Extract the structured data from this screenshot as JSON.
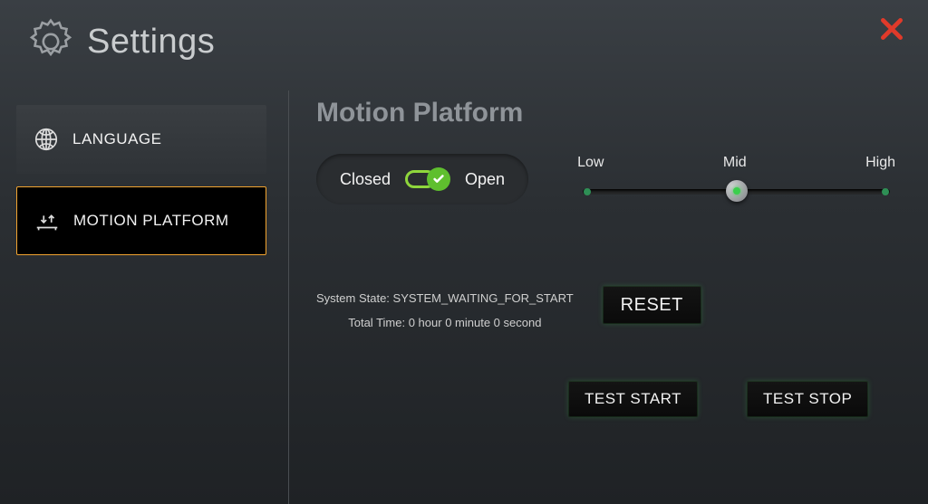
{
  "header": {
    "title": "Settings"
  },
  "colors": {
    "close_icon": "#e03a2a",
    "active_border": "#f2a430",
    "toggle_green": "#8fd63c",
    "toggle_knob": "#5fbf2e",
    "slider_tick": "#2e8f55",
    "slider_handle_dot": "#3bcf4d"
  },
  "sidebar": {
    "items": [
      {
        "id": "language",
        "label": "LANGUAGE",
        "icon": "globe-icon",
        "active": false
      },
      {
        "id": "motion-platform",
        "label": "MOTION PLATFORM",
        "icon": "platform-icon",
        "active": true
      }
    ]
  },
  "main": {
    "title": "Motion Platform",
    "toggle": {
      "left_label": "Closed",
      "right_label": "Open",
      "state": "closed"
    },
    "slider": {
      "labels": [
        "Low",
        "Mid",
        "High"
      ],
      "value_index": 1,
      "tick_positions_pct": [
        3,
        50,
        97
      ],
      "handle_position_pct": 50
    },
    "status": {
      "system_state_label": "System State:",
      "system_state_value": "SYSTEM_WAITING_FOR_START",
      "total_time_label": "Total Time:",
      "total_time_value": "0 hour 0 minute 0 second"
    },
    "buttons": {
      "reset": "RESET",
      "test_start": "TEST START",
      "test_stop": "TEST STOP"
    }
  }
}
